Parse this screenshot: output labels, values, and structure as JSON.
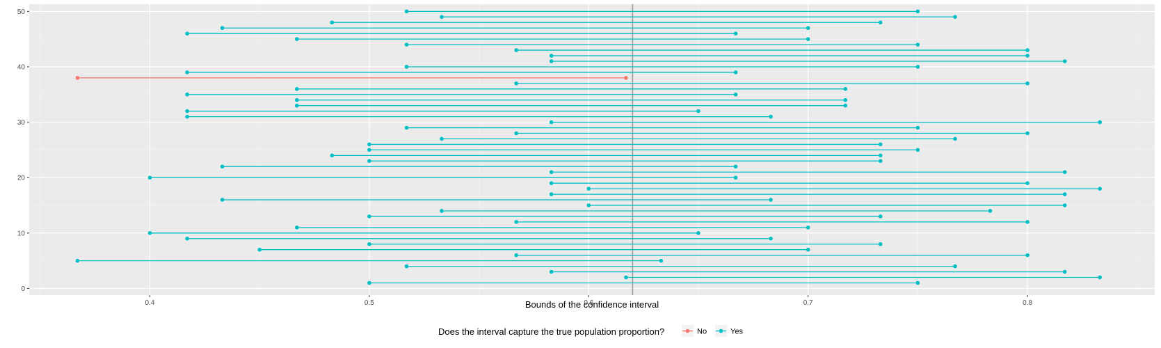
{
  "chart_data": {
    "type": "dumbbell",
    "title": "",
    "xlabel": "Bounds of the confidence interval",
    "ylabel": "",
    "xlim": [
      0.345,
      0.858
    ],
    "ylim": [
      -1.2,
      51.3
    ],
    "x_ticks": [
      0.4,
      0.5,
      0.6,
      0.7,
      0.8
    ],
    "x_tick_labels": [
      "0.4",
      "0.5",
      "0.6",
      "0.7",
      "0.8"
    ],
    "y_ticks": [
      0,
      10,
      20,
      30,
      40,
      50
    ],
    "y_tick_labels": [
      "0",
      "10",
      "20",
      "30",
      "40",
      "50"
    ],
    "reference_line": 0.62,
    "grid": true,
    "legend": {
      "title": "Does the interval capture the true population proportion?",
      "position": "bottom",
      "entries": [
        {
          "label": "No",
          "color": "#F8766D"
        },
        {
          "label": "Yes",
          "color": "#00BFC4"
        }
      ]
    },
    "colors": {
      "No": "#F8766D",
      "Yes": "#00BFC4",
      "reference": "#999999"
    },
    "intervals": [
      {
        "id": 1,
        "lower": 0.5,
        "upper": 0.75,
        "captured": "Yes"
      },
      {
        "id": 2,
        "lower": 0.617,
        "upper": 0.833,
        "captured": "Yes"
      },
      {
        "id": 3,
        "lower": 0.583,
        "upper": 0.817,
        "captured": "Yes"
      },
      {
        "id": 4,
        "lower": 0.517,
        "upper": 0.767,
        "captured": "Yes"
      },
      {
        "id": 5,
        "lower": 0.367,
        "upper": 0.633,
        "captured": "Yes"
      },
      {
        "id": 6,
        "lower": 0.567,
        "upper": 0.8,
        "captured": "Yes"
      },
      {
        "id": 7,
        "lower": 0.45,
        "upper": 0.7,
        "captured": "Yes"
      },
      {
        "id": 8,
        "lower": 0.5,
        "upper": 0.733,
        "captured": "Yes"
      },
      {
        "id": 9,
        "lower": 0.417,
        "upper": 0.683,
        "captured": "Yes"
      },
      {
        "id": 10,
        "lower": 0.4,
        "upper": 0.65,
        "captured": "Yes"
      },
      {
        "id": 11,
        "lower": 0.467,
        "upper": 0.7,
        "captured": "Yes"
      },
      {
        "id": 12,
        "lower": 0.567,
        "upper": 0.8,
        "captured": "Yes"
      },
      {
        "id": 13,
        "lower": 0.5,
        "upper": 0.733,
        "captured": "Yes"
      },
      {
        "id": 14,
        "lower": 0.533,
        "upper": 0.783,
        "captured": "Yes"
      },
      {
        "id": 15,
        "lower": 0.6,
        "upper": 0.817,
        "captured": "Yes"
      },
      {
        "id": 16,
        "lower": 0.433,
        "upper": 0.683,
        "captured": "Yes"
      },
      {
        "id": 17,
        "lower": 0.583,
        "upper": 0.817,
        "captured": "Yes"
      },
      {
        "id": 18,
        "lower": 0.6,
        "upper": 0.833,
        "captured": "Yes"
      },
      {
        "id": 19,
        "lower": 0.583,
        "upper": 0.8,
        "captured": "Yes"
      },
      {
        "id": 20,
        "lower": 0.4,
        "upper": 0.667,
        "captured": "Yes"
      },
      {
        "id": 21,
        "lower": 0.583,
        "upper": 0.817,
        "captured": "Yes"
      },
      {
        "id": 22,
        "lower": 0.433,
        "upper": 0.667,
        "captured": "Yes"
      },
      {
        "id": 23,
        "lower": 0.5,
        "upper": 0.733,
        "captured": "Yes"
      },
      {
        "id": 24,
        "lower": 0.483,
        "upper": 0.733,
        "captured": "Yes"
      },
      {
        "id": 25,
        "lower": 0.5,
        "upper": 0.75,
        "captured": "Yes"
      },
      {
        "id": 26,
        "lower": 0.5,
        "upper": 0.733,
        "captured": "Yes"
      },
      {
        "id": 27,
        "lower": 0.533,
        "upper": 0.767,
        "captured": "Yes"
      },
      {
        "id": 28,
        "lower": 0.567,
        "upper": 0.8,
        "captured": "Yes"
      },
      {
        "id": 29,
        "lower": 0.517,
        "upper": 0.75,
        "captured": "Yes"
      },
      {
        "id": 30,
        "lower": 0.583,
        "upper": 0.833,
        "captured": "Yes"
      },
      {
        "id": 31,
        "lower": 0.417,
        "upper": 0.683,
        "captured": "Yes"
      },
      {
        "id": 32,
        "lower": 0.417,
        "upper": 0.65,
        "captured": "Yes"
      },
      {
        "id": 33,
        "lower": 0.467,
        "upper": 0.717,
        "captured": "Yes"
      },
      {
        "id": 34,
        "lower": 0.467,
        "upper": 0.717,
        "captured": "Yes"
      },
      {
        "id": 35,
        "lower": 0.417,
        "upper": 0.667,
        "captured": "Yes"
      },
      {
        "id": 36,
        "lower": 0.467,
        "upper": 0.717,
        "captured": "Yes"
      },
      {
        "id": 37,
        "lower": 0.567,
        "upper": 0.8,
        "captured": "Yes"
      },
      {
        "id": 38,
        "lower": 0.367,
        "upper": 0.617,
        "captured": "No"
      },
      {
        "id": 39,
        "lower": 0.417,
        "upper": 0.667,
        "captured": "Yes"
      },
      {
        "id": 40,
        "lower": 0.517,
        "upper": 0.75,
        "captured": "Yes"
      },
      {
        "id": 41,
        "lower": 0.583,
        "upper": 0.817,
        "captured": "Yes"
      },
      {
        "id": 42,
        "lower": 0.583,
        "upper": 0.8,
        "captured": "Yes"
      },
      {
        "id": 43,
        "lower": 0.567,
        "upper": 0.8,
        "captured": "Yes"
      },
      {
        "id": 44,
        "lower": 0.517,
        "upper": 0.75,
        "captured": "Yes"
      },
      {
        "id": 45,
        "lower": 0.467,
        "upper": 0.7,
        "captured": "Yes"
      },
      {
        "id": 46,
        "lower": 0.417,
        "upper": 0.667,
        "captured": "Yes"
      },
      {
        "id": 47,
        "lower": 0.433,
        "upper": 0.7,
        "captured": "Yes"
      },
      {
        "id": 48,
        "lower": 0.483,
        "upper": 0.733,
        "captured": "Yes"
      },
      {
        "id": 49,
        "lower": 0.533,
        "upper": 0.767,
        "captured": "Yes"
      },
      {
        "id": 50,
        "lower": 0.517,
        "upper": 0.75,
        "captured": "Yes"
      }
    ]
  }
}
